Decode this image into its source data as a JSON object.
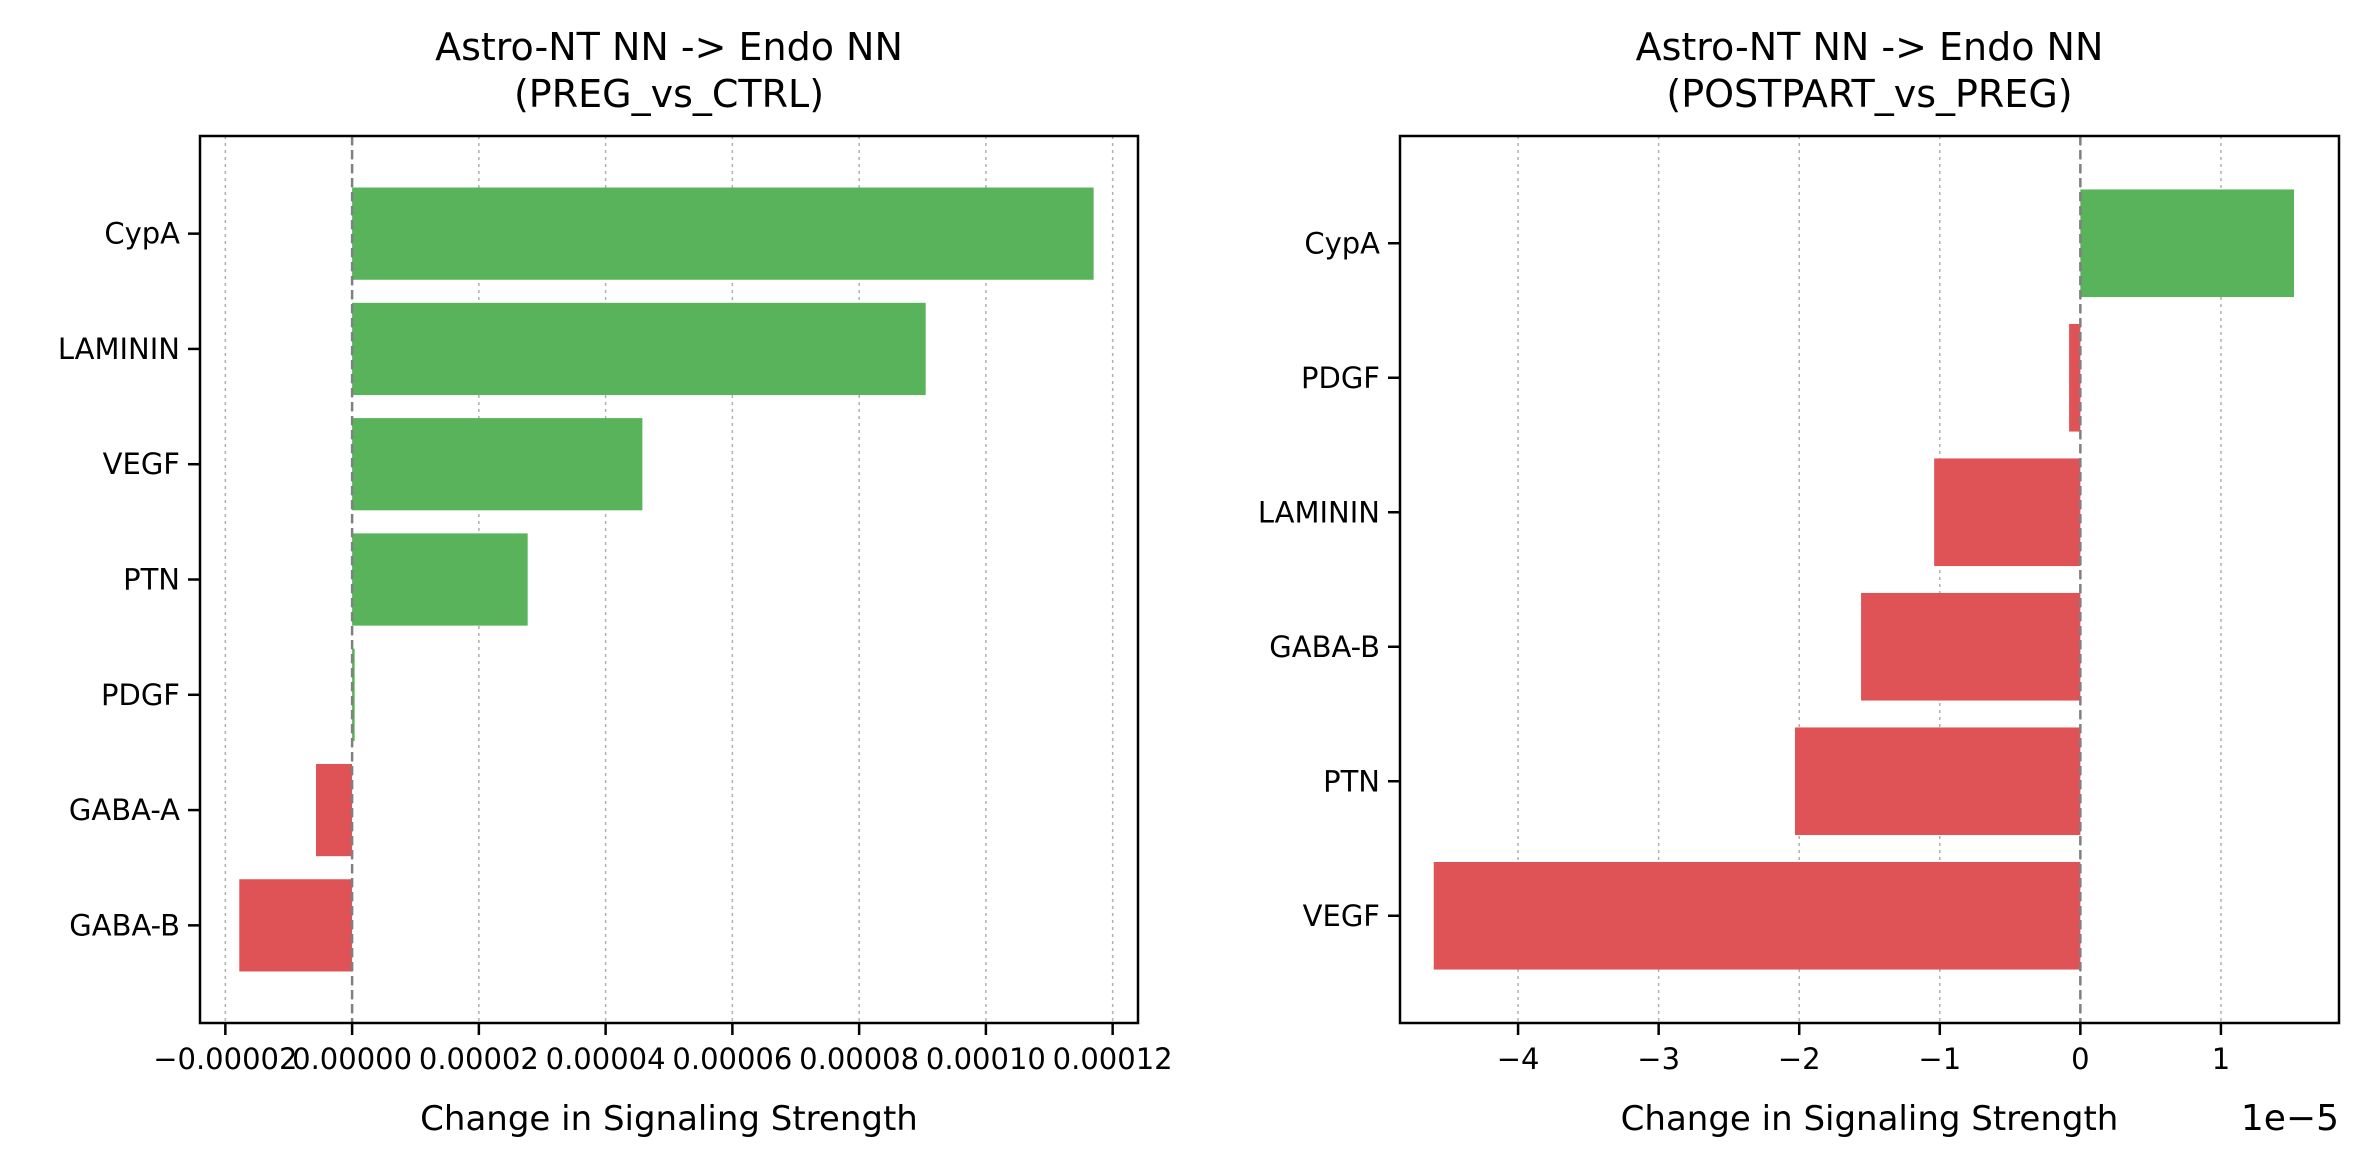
{
  "chart_data": [
    {
      "type": "bar",
      "orientation": "horizontal",
      "title": "Astro-NT NN -> Endo NN\n(PREG_vs_CTRL)",
      "xlabel": "Change in Signaling Strength",
      "ylabel": "",
      "categories": [
        "CypA",
        "LAMININ",
        "VEGF",
        "PTN",
        "PDGF",
        "GABA-A",
        "GABA-B"
      ],
      "values": [
        0.000117,
        9.05e-05,
        4.58e-05,
        2.77e-05,
        4e-07,
        -5.7e-06,
        -1.78e-05
      ],
      "xlim": [
        -2.4e-05,
        0.000124
      ],
      "xticks": [
        -2e-05,
        0.0,
        2e-05,
        4e-05,
        6e-05,
        8e-05,
        0.0001,
        0.00012
      ],
      "xtick_labels": [
        "−0.00002",
        "0.00000",
        "0.00002",
        "0.00004",
        "0.00006",
        "0.00008",
        "0.00010",
        "0.00012"
      ],
      "x_offset_label": "",
      "grid": "x",
      "zero_line": true,
      "colors": {
        "positive": "#59b35a",
        "negative": "#df5255"
      }
    },
    {
      "type": "bar",
      "orientation": "horizontal",
      "title": "Astro-NT NN -> Endo NN\n(POSTPART_vs_PREG)",
      "xlabel": "Change in Signaling Strength",
      "ylabel": "",
      "categories": [
        "CypA",
        "PDGF",
        "LAMININ",
        "GABA-B",
        "PTN",
        "VEGF"
      ],
      "values": [
        1.52,
        -0.08,
        -1.04,
        -1.56,
        -2.03,
        -4.6
      ],
      "value_scale": "1e-5",
      "xlim": [
        -4.84,
        1.84
      ],
      "xticks": [
        -4,
        -3,
        -2,
        -1,
        0,
        1
      ],
      "xtick_labels": [
        "−4",
        "−3",
        "−2",
        "−1",
        "0",
        "1"
      ],
      "x_offset_label": "1e−5",
      "grid": "x",
      "zero_line": true,
      "colors": {
        "positive": "#59b35a",
        "negative": "#df5255"
      }
    }
  ]
}
